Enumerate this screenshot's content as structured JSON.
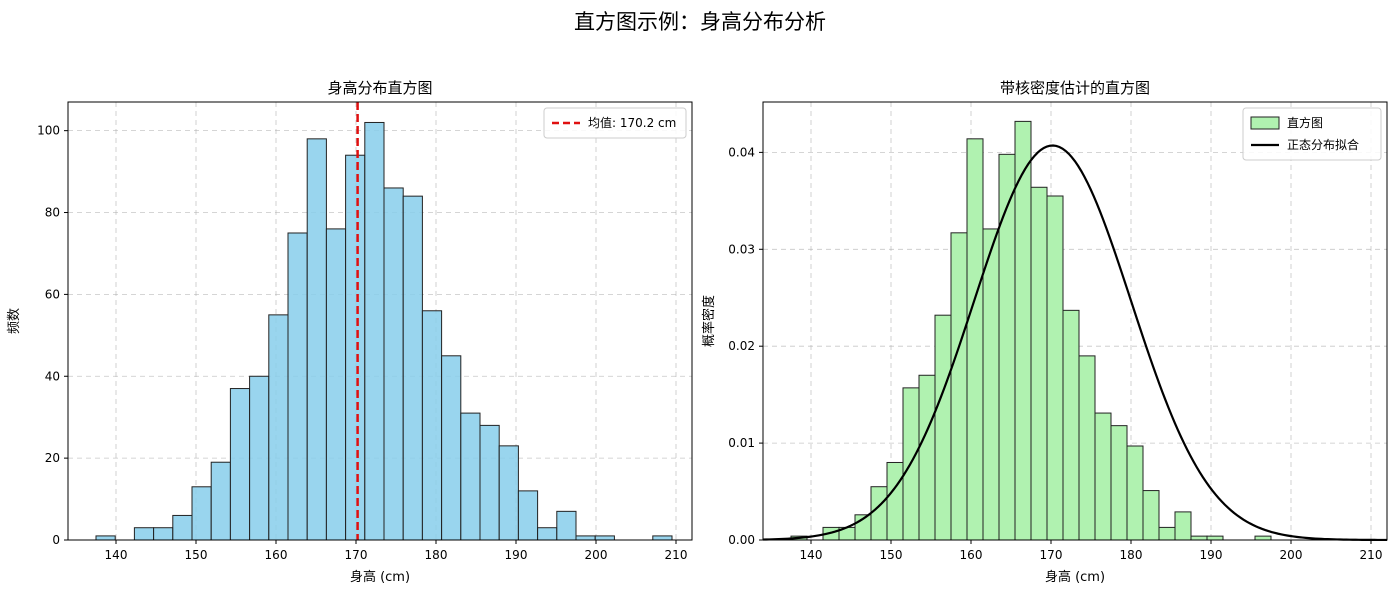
{
  "figure_title": "直方图示例：身高分布分析",
  "chart_data": [
    {
      "type": "bar",
      "title": "身高分布直方图",
      "xlabel": "身高 (cm)",
      "ylabel": "频数",
      "xlim": [
        134,
        212
      ],
      "ylim": [
        0,
        107
      ],
      "xticks": [
        140,
        150,
        160,
        170,
        180,
        190,
        200,
        210
      ],
      "yticks": [
        0,
        20,
        40,
        60,
        80,
        100
      ],
      "ytick_labels": [
        "0",
        "20",
        "40",
        "60",
        "80",
        "100"
      ],
      "grid": true,
      "bar_color": "#87ceeb",
      "bar_edge_color": "#222222",
      "bins": {
        "edges": [
          137.5,
          139.9,
          142.3,
          144.7,
          147.1,
          149.5,
          151.9,
          154.3,
          156.7,
          159.1,
          161.5,
          163.9,
          166.3,
          168.7,
          171.1,
          173.5,
          175.9,
          178.3,
          180.7,
          183.1,
          185.5,
          187.9,
          190.3,
          192.7,
          195.1,
          197.5,
          199.9,
          202.3,
          204.7,
          207.1,
          209.5
        ],
        "counts": [
          1,
          0,
          3,
          3,
          6,
          13,
          19,
          37,
          40,
          55,
          75,
          98,
          76,
          94,
          102,
          86,
          84,
          56,
          45,
          31,
          28,
          23,
          12,
          3,
          7,
          1,
          1,
          0,
          0,
          1
        ]
      },
      "mean_line": {
        "value": 170.2,
        "label": "均值: 170.2 cm",
        "color": "#e01010"
      },
      "legend": {
        "placement": "upper right",
        "entries": [
          {
            "label": "均值: 170.2 cm",
            "kind": "dashed-line"
          }
        ]
      }
    },
    {
      "type": "bar",
      "title": "带核密度估计的直方图",
      "xlabel": "身高 (cm)",
      "ylabel": "概率密度",
      "xlim": [
        134,
        212
      ],
      "ylim": [
        0,
        0.0452
      ],
      "xticks": [
        140,
        150,
        160,
        170,
        180,
        190,
        200,
        210
      ],
      "yticks": [
        0,
        0.01,
        0.02,
        0.03,
        0.04
      ],
      "ytick_labels": [
        "0.00",
        "0.01",
        "0.02",
        "0.03",
        "0.04"
      ],
      "grid": true,
      "bar_color": "#b0f2b0",
      "bar_edge_color": "#222222",
      "bins": {
        "edges": [
          137.5,
          139.5,
          141.5,
          143.5,
          145.5,
          147.5,
          149.5,
          151.5,
          153.5,
          155.5,
          157.5,
          159.5,
          161.5,
          163.5,
          165.5,
          167.5,
          169.5,
          171.5,
          173.5,
          175.5,
          177.5,
          179.5,
          181.5,
          183.5,
          185.5,
          187.5,
          189.5,
          191.5,
          193.5,
          195.5,
          197.5,
          199.5,
          201.5,
          203.5,
          205.5,
          207.5,
          209.5
        ],
        "densities": [
          0.0004,
          0.0,
          0.0013,
          0.0013,
          0.0026,
          0.0055,
          0.008,
          0.0157,
          0.017,
          0.0232,
          0.0317,
          0.0414,
          0.0321,
          0.0398,
          0.0432,
          0.0364,
          0.0355,
          0.0237,
          0.019,
          0.0131,
          0.0118,
          0.0097,
          0.0051,
          0.0013,
          0.0029,
          0.0004,
          0.0004,
          0.0,
          0.0,
          0.0004,
          0.0,
          0.0,
          0.0,
          0.0,
          0.0,
          0.0
        ]
      },
      "fit_curve": {
        "label": "正态分布拟合",
        "mean": 170.2,
        "std": 9.8,
        "x_range": [
          134,
          212
        ],
        "color": "#000000"
      },
      "legend": {
        "placement": "upper right",
        "entries": [
          {
            "label": "直方图",
            "kind": "patch"
          },
          {
            "label": "正态分布拟合",
            "kind": "line"
          }
        ]
      }
    }
  ]
}
